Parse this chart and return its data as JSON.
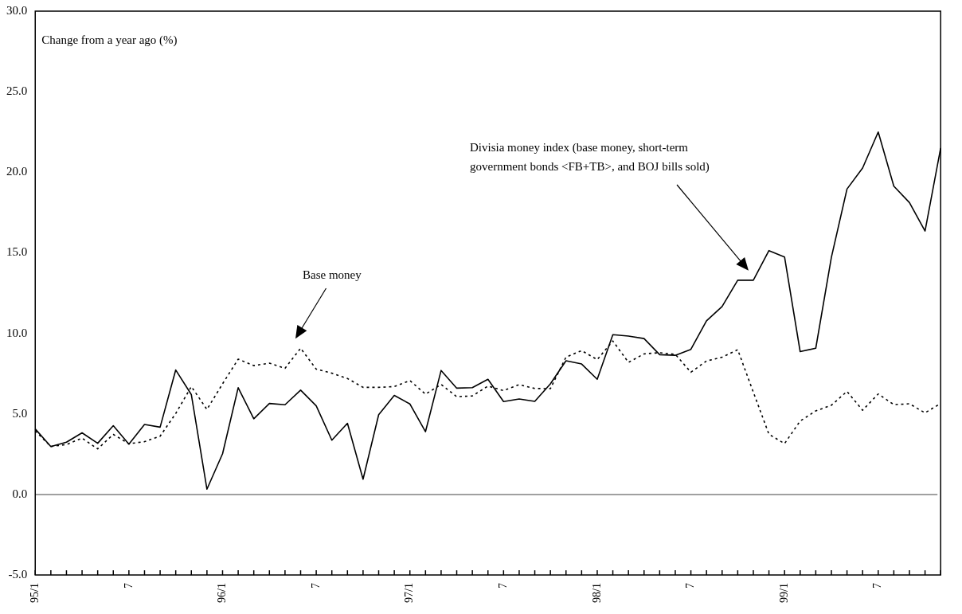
{
  "chart_data": {
    "type": "line",
    "ylabel": "Change from a year ago (%)",
    "annotations": [
      "Divisia money index (base money, short-term government bonds <FB+TB>, and BOJ bills sold)",
      "Base money"
    ],
    "categories": [
      "95/1",
      null,
      null,
      null,
      null,
      null,
      "7",
      null,
      null,
      null,
      null,
      null,
      "96/1",
      null,
      null,
      null,
      null,
      null,
      "7",
      null,
      null,
      null,
      null,
      null,
      "97/1",
      null,
      null,
      null,
      null,
      null,
      "7",
      null,
      null,
      null,
      null,
      null,
      "98/1",
      null,
      null,
      null,
      null,
      null,
      "7",
      null,
      null,
      null,
      null,
      null,
      "99/1",
      null,
      null,
      null,
      null,
      null,
      "7",
      null,
      null,
      null,
      null
    ],
    "series": [
      {
        "color": "#000000",
        "line_style": "solid",
        "values": [
          4.07,
          2.98,
          3.25,
          3.83,
          3.18,
          4.27,
          3.12,
          4.35,
          4.18,
          7.73,
          6.2,
          0.33,
          2.53,
          6.63,
          4.7,
          5.65,
          5.57,
          6.48,
          5.5,
          3.37,
          4.42,
          0.95,
          4.95,
          6.15,
          5.62,
          3.9,
          7.7,
          6.6,
          6.63,
          7.15,
          5.77,
          5.93,
          5.78,
          6.87,
          8.3,
          8.1,
          7.15,
          9.92,
          9.83,
          9.68,
          8.68,
          8.64,
          9.01,
          10.78,
          11.67,
          13.3,
          13.3,
          15.14,
          14.74,
          8.87,
          9.08,
          14.72,
          18.96,
          20.26,
          22.5,
          19.14,
          18.12,
          16.35,
          21.5
        ]
      },
      {
        "color": "#000000",
        "line_style": "dotted",
        "values": [
          3.95,
          2.98,
          3.1,
          3.5,
          2.83,
          3.73,
          3.15,
          3.28,
          3.62,
          5.03,
          6.7,
          5.28,
          6.87,
          8.4,
          8.0,
          8.15,
          7.83,
          9.08,
          7.78,
          7.53,
          7.2,
          6.65,
          6.65,
          6.7,
          7.07,
          6.23,
          6.83,
          6.07,
          6.12,
          6.73,
          6.45,
          6.82,
          6.58,
          6.57,
          8.53,
          8.93,
          8.37,
          9.53,
          8.2,
          8.73,
          8.8,
          8.7,
          7.59,
          8.29,
          8.52,
          8.99,
          6.35,
          3.74,
          3.16,
          4.56,
          5.19,
          5.54,
          6.4,
          5.23,
          6.24,
          5.58,
          5.63,
          5.07,
          5.65
        ]
      }
    ],
    "ylim": [
      -5,
      30
    ],
    "yticks": [
      {
        "value": -5,
        "label": "-5.0"
      },
      {
        "value": 0,
        "label": "0.0"
      },
      {
        "value": 5,
        "label": "5.0"
      },
      {
        "value": 10,
        "label": "10.0"
      },
      {
        "value": 15,
        "label": "15.0"
      },
      {
        "value": 20,
        "label": "20.0"
      },
      {
        "value": 25,
        "label": "25.0"
      },
      {
        "value": 30,
        "label": "30.0"
      }
    ],
    "ref_lines": [
      {
        "axis": "y",
        "value": 0,
        "color": "#808080"
      }
    ],
    "marker": "none",
    "grid": false,
    "legend": false
  }
}
